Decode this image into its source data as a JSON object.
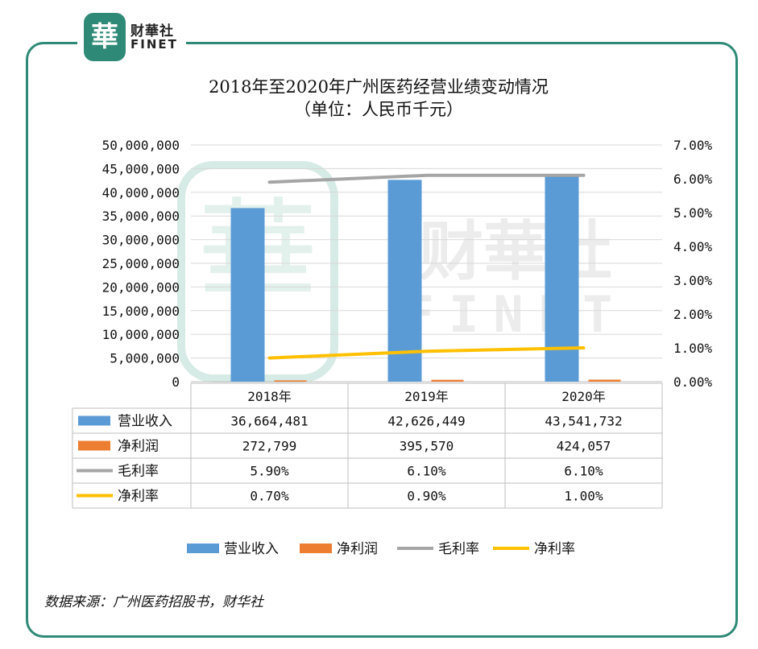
{
  "brand": {
    "seal_char": "華",
    "name_cn": "财華社",
    "name_en": "FINET"
  },
  "chart_data": {
    "type": "bar",
    "title": "2018年至2020年广州医药经营业绩变动情况",
    "subtitle": "（单位：人民币千元）",
    "categories": [
      "2018年",
      "2019年",
      "2020年"
    ],
    "y_left": {
      "ylim": [
        0,
        50000000
      ],
      "ticks": [
        "0",
        "5,000,000",
        "10,000,000",
        "15,000,000",
        "20,000,000",
        "25,000,000",
        "30,000,000",
        "35,000,000",
        "40,000,000",
        "45,000,000",
        "50,000,000"
      ]
    },
    "y_right": {
      "ylim": [
        0,
        0.07
      ],
      "ticks": [
        "0.00%",
        "1.00%",
        "2.00%",
        "3.00%",
        "4.00%",
        "5.00%",
        "6.00%",
        "7.00%"
      ]
    },
    "grid": true,
    "legend_position": "bottom",
    "series": [
      {
        "name": "营业收入",
        "type": "bar",
        "axis": "left",
        "color": "#5b9bd5",
        "values": [
          36664481,
          42626449,
          43541732
        ],
        "labels": [
          "36,664,481",
          "42,626,449",
          "43,541,732"
        ]
      },
      {
        "name": "净利润",
        "type": "bar",
        "axis": "left",
        "color": "#ed7d31",
        "values": [
          272799,
          395570,
          424057
        ],
        "labels": [
          "272,799",
          "395,570",
          "424,057"
        ]
      },
      {
        "name": "毛利率",
        "type": "line",
        "axis": "right",
        "color": "#a5a5a5",
        "values": [
          0.059,
          0.061,
          0.061
        ],
        "labels": [
          "5.90%",
          "6.10%",
          "6.10%"
        ]
      },
      {
        "name": "净利率",
        "type": "line",
        "axis": "right",
        "color": "#ffc000",
        "values": [
          0.007,
          0.009,
          0.01
        ],
        "labels": [
          "0.70%",
          "0.90%",
          "1.00%"
        ]
      }
    ]
  },
  "watermark": {
    "cn": "财華社",
    "en": "FINET"
  },
  "source": "数据来源：广州医药招股书，财华社"
}
